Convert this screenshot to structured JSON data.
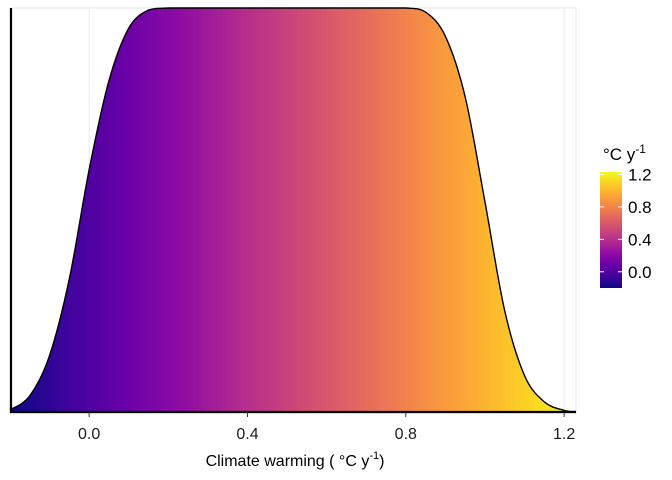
{
  "chart_data": {
    "type": "area",
    "xlabel": "Climate warming ( °C y",
    "xlabel_sup": "-1",
    "xlabel_end": ")",
    "ylabel": "",
    "xlim": [
      -0.2,
      1.23
    ],
    "ylim": [
      0,
      1
    ],
    "x_ticks": [
      0.0,
      0.4,
      0.8,
      1.2
    ],
    "x_tick_labels": [
      "0.0",
      "0.4",
      "0.8",
      "1.2"
    ],
    "grid": true,
    "legend": {
      "position": "right",
      "title": "°C y",
      "title_sup": "-1",
      "type": "colorbar",
      "colormap": "plasma",
      "range": [
        -0.2,
        1.23
      ],
      "ticks": [
        0.0,
        0.4,
        0.8,
        1.2
      ],
      "tick_labels": [
        "0.0",
        "0.4",
        "0.8",
        "1.2"
      ]
    },
    "series": [
      {
        "fill": "gradient by x (plasma)",
        "outline": "#000000",
        "x": [
          -0.2,
          -0.15,
          -0.1,
          -0.05,
          0.0,
          0.05,
          0.1,
          0.15,
          0.2,
          0.3,
          0.4,
          0.5,
          0.6,
          0.7,
          0.8,
          0.85,
          0.9,
          0.95,
          1.0,
          1.05,
          1.1,
          1.15,
          1.2,
          1.23
        ],
        "y": [
          0.005,
          0.04,
          0.14,
          0.33,
          0.6,
          0.82,
          0.95,
          0.995,
          1.0,
          1.0,
          1.0,
          1.0,
          1.0,
          1.0,
          1.0,
          0.99,
          0.93,
          0.78,
          0.52,
          0.25,
          0.09,
          0.025,
          0.004,
          0.001
        ]
      }
    ]
  }
}
